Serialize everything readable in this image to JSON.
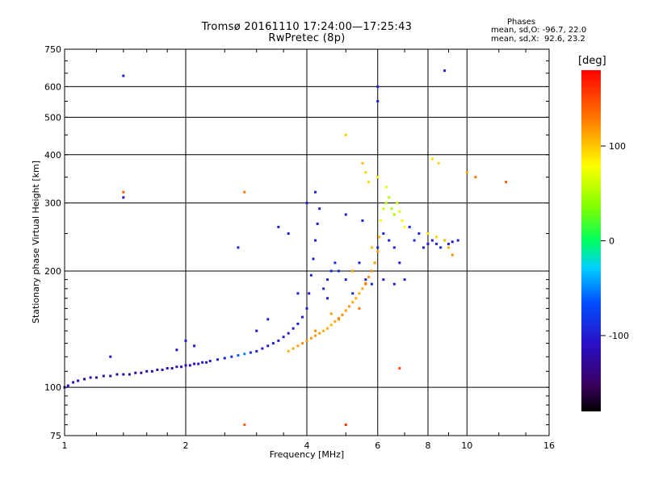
{
  "chart_data": {
    "type": "scatter",
    "title": "Tromsø 20161110 17:24:00—17:25:43",
    "subtitle": "RwPretec (8p)",
    "xlabel": "Frequency [MHz]",
    "ylabel": "Stationary phase Virtual Height [km]",
    "xscale": "log",
    "yscale": "log",
    "xlim": [
      1,
      16
    ],
    "ylim": [
      75,
      750
    ],
    "x_ticks": [
      1,
      2,
      4,
      6,
      8,
      10,
      16
    ],
    "y_ticks": [
      75,
      100,
      200,
      300,
      400,
      500,
      600,
      750
    ],
    "grid": true,
    "stats": {
      "title": "Phases",
      "o_mode": "mean, sd,O: -96.7, 22.0",
      "x_mode": "mean, sd,X:  92.6, 23.2"
    },
    "colorbar": {
      "label": "[deg]",
      "range": [
        -180,
        180
      ],
      "ticks": [
        100,
        0,
        -100
      ]
    },
    "series": [
      {
        "points": [
          [
            1.0,
            100,
            -110
          ],
          [
            1.02,
            101,
            -115
          ],
          [
            1.05,
            103,
            -118
          ],
          [
            1.08,
            104,
            -120
          ],
          [
            1.12,
            105,
            -118
          ],
          [
            1.16,
            106,
            -122
          ],
          [
            1.2,
            106,
            -125
          ],
          [
            1.25,
            107,
            -124
          ],
          [
            1.3,
            107,
            -126
          ],
          [
            1.35,
            108,
            -125
          ],
          [
            1.4,
            108,
            -128
          ],
          [
            1.45,
            108,
            -127
          ],
          [
            1.5,
            109,
            -126
          ],
          [
            1.55,
            109,
            -124
          ],
          [
            1.6,
            110,
            -122
          ],
          [
            1.65,
            110,
            -120
          ],
          [
            1.7,
            111,
            -118
          ],
          [
            1.75,
            111,
            -120
          ],
          [
            1.8,
            112,
            -118
          ],
          [
            1.85,
            112,
            -116
          ],
          [
            1.9,
            113,
            -115
          ],
          [
            1.95,
            113,
            -112
          ],
          [
            2.0,
            114,
            -110
          ],
          [
            2.05,
            114,
            -108
          ],
          [
            2.1,
            115,
            -107
          ],
          [
            2.15,
            115,
            -106
          ],
          [
            2.2,
            116,
            -104
          ],
          [
            2.25,
            116,
            -102
          ],
          [
            2.3,
            117,
            -100
          ],
          [
            2.4,
            118,
            -98
          ],
          [
            2.5,
            119,
            -96
          ],
          [
            2.6,
            120,
            -80
          ],
          [
            2.7,
            121,
            -60
          ],
          [
            2.8,
            122,
            -50
          ],
          [
            2.9,
            123,
            -85
          ],
          [
            3.0,
            124,
            -95
          ],
          [
            3.1,
            126,
            -100
          ],
          [
            3.2,
            128,
            -102
          ],
          [
            3.3,
            130,
            -100
          ],
          [
            3.4,
            132,
            -98
          ],
          [
            3.5,
            135,
            -100
          ],
          [
            3.6,
            138,
            -102
          ],
          [
            3.7,
            142,
            -100
          ],
          [
            3.8,
            146,
            -98
          ],
          [
            3.9,
            152,
            -100
          ],
          [
            4.0,
            160,
            -102
          ],
          [
            4.05,
            175,
            -104
          ],
          [
            4.1,
            195,
            -102
          ],
          [
            4.15,
            215,
            -100
          ],
          [
            4.2,
            240,
            -98
          ],
          [
            4.25,
            265,
            -96
          ],
          [
            4.3,
            290,
            -100
          ],
          [
            4.4,
            180,
            -98
          ],
          [
            4.5,
            190,
            -96
          ],
          [
            4.6,
            200,
            -94
          ],
          [
            4.7,
            210,
            -92
          ],
          [
            4.8,
            200,
            -90
          ],
          [
            5.0,
            190,
            -95
          ],
          [
            5.2,
            200,
            -100
          ],
          [
            5.4,
            210,
            -98
          ],
          [
            5.6,
            190,
            -96
          ],
          [
            5.8,
            200,
            -94
          ],
          [
            6.0,
            230,
            -92
          ],
          [
            6.2,
            250,
            -96
          ],
          [
            6.4,
            240,
            -98
          ],
          [
            6.6,
            230,
            -100
          ],
          [
            6.8,
            210,
            -102
          ],
          [
            7.0,
            190,
            -98
          ],
          [
            7.2,
            260,
            -96
          ],
          [
            7.4,
            240,
            -94
          ],
          [
            7.6,
            250,
            -96
          ],
          [
            7.8,
            230,
            -98
          ],
          [
            8.0,
            235,
            -100
          ],
          [
            8.2,
            240,
            -98
          ],
          [
            8.4,
            235,
            -96
          ],
          [
            8.6,
            230,
            -94
          ],
          [
            8.8,
            240,
            -96
          ],
          [
            9.0,
            235,
            -98
          ],
          [
            9.2,
            238,
            -100
          ],
          [
            9.5,
            240,
            -98
          ],
          [
            1.3,
            120,
            -100
          ],
          [
            1.9,
            125,
            -105
          ],
          [
            2.0,
            132,
            -102
          ],
          [
            2.1,
            128,
            -100
          ],
          [
            3.0,
            140,
            -105
          ],
          [
            3.2,
            150,
            -100
          ],
          [
            3.4,
            260,
            -95
          ],
          [
            3.6,
            250,
            -98
          ],
          [
            4.0,
            300,
            -100
          ],
          [
            4.2,
            320,
            -102
          ],
          [
            5.0,
            280,
            -100
          ],
          [
            5.5,
            270,
            -98
          ],
          [
            6.0,
            600,
            -100
          ],
          [
            6.0,
            550,
            -95
          ],
          [
            8.8,
            660,
            -100
          ],
          [
            1.4,
            640,
            -100
          ],
          [
            3.8,
            175,
            -100
          ],
          [
            4.5,
            170,
            -98
          ],
          [
            5.2,
            175,
            -96
          ],
          [
            5.8,
            185,
            -94
          ],
          [
            2.7,
            230,
            -100
          ],
          [
            1.4,
            310,
            -105
          ],
          [
            6.2,
            190,
            -100
          ],
          [
            6.6,
            185,
            -98
          ]
        ]
      },
      {
        "points": [
          [
            3.6,
            124,
            110
          ],
          [
            3.7,
            126,
            112
          ],
          [
            3.8,
            128,
            115
          ],
          [
            3.9,
            130,
            118
          ],
          [
            4.0,
            132,
            120
          ],
          [
            4.1,
            134,
            118
          ],
          [
            4.2,
            136,
            116
          ],
          [
            4.3,
            138,
            115
          ],
          [
            4.4,
            140,
            112
          ],
          [
            4.5,
            142,
            110
          ],
          [
            4.6,
            145,
            108
          ],
          [
            4.7,
            148,
            112
          ],
          [
            4.8,
            151,
            116
          ],
          [
            4.9,
            154,
            120
          ],
          [
            5.0,
            158,
            118
          ],
          [
            5.1,
            162,
            116
          ],
          [
            5.2,
            166,
            112
          ],
          [
            5.3,
            170,
            110
          ],
          [
            5.4,
            175,
            108
          ],
          [
            5.5,
            180,
            112
          ],
          [
            5.6,
            186,
            116
          ],
          [
            5.7,
            193,
            120
          ],
          [
            5.8,
            200,
            118
          ],
          [
            5.9,
            210,
            116
          ],
          [
            6.0,
            225,
            112
          ],
          [
            6.05,
            245,
            110
          ],
          [
            6.1,
            270,
            80
          ],
          [
            6.2,
            290,
            60
          ],
          [
            6.3,
            300,
            55
          ],
          [
            6.4,
            310,
            50
          ],
          [
            6.5,
            290,
            45
          ],
          [
            6.6,
            280,
            50
          ],
          [
            6.7,
            300,
            60
          ],
          [
            6.8,
            285,
            70
          ],
          [
            6.9,
            270,
            75
          ],
          [
            7.0,
            260,
            80
          ],
          [
            5.5,
            380,
            100
          ],
          [
            5.6,
            360,
            95
          ],
          [
            5.7,
            340,
            90
          ],
          [
            6.0,
            350,
            85
          ],
          [
            6.3,
            330,
            70
          ],
          [
            8.2,
            390,
            90
          ],
          [
            8.5,
            380,
            95
          ],
          [
            10.0,
            360,
            110
          ],
          [
            10.5,
            350,
            130
          ],
          [
            12.5,
            340,
            140
          ],
          [
            5.0,
            450,
            100
          ],
          [
            5.4,
            160,
            130
          ],
          [
            4.8,
            150,
            125
          ],
          [
            4.2,
            140,
            120
          ],
          [
            4.6,
            155,
            115
          ],
          [
            5.8,
            230,
            105
          ],
          [
            8.0,
            250,
            90
          ],
          [
            8.4,
            245,
            95
          ],
          [
            8.8,
            240,
            100
          ],
          [
            9.0,
            230,
            110
          ],
          [
            9.2,
            220,
            120
          ],
          [
            6.8,
            112,
            150
          ],
          [
            2.8,
            80,
            140
          ],
          [
            2.8,
            320,
            130
          ],
          [
            1.4,
            320,
            140
          ],
          [
            5.0,
            80,
            160
          ],
          [
            5.6,
            185,
            130
          ],
          [
            5.2,
            200,
            110
          ]
        ]
      }
    ]
  }
}
